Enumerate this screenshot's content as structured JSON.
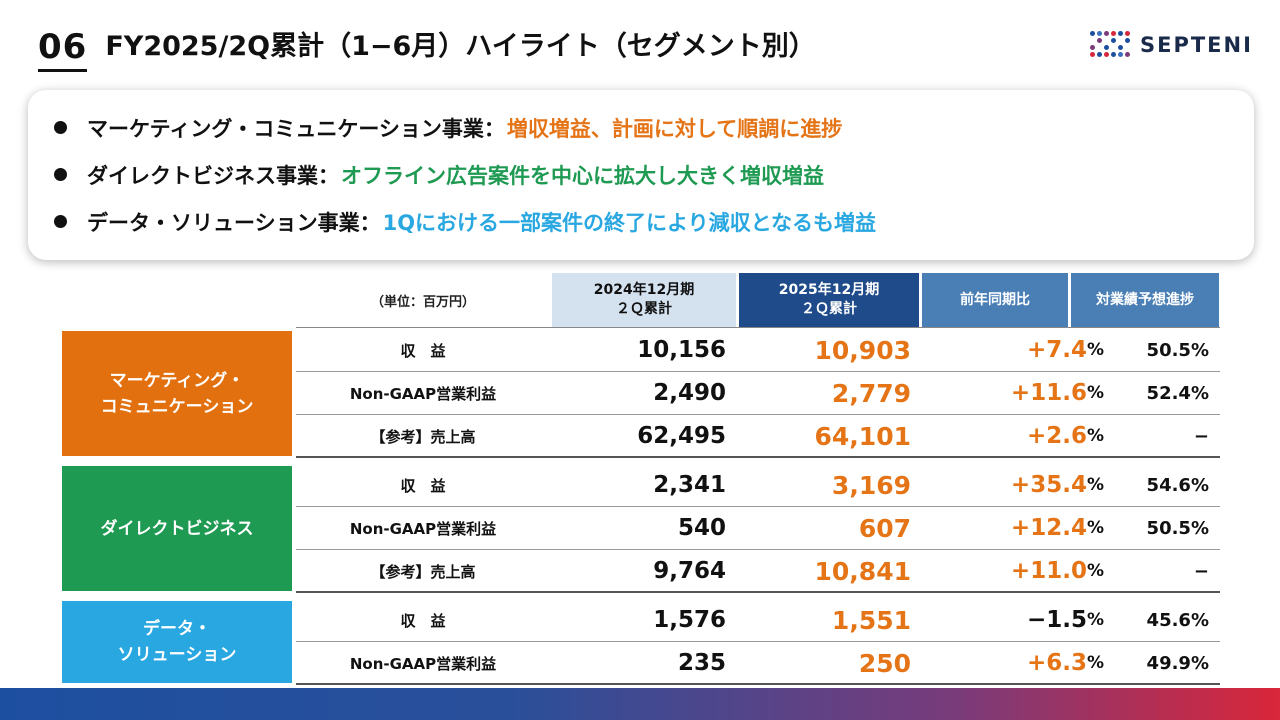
{
  "header": {
    "page_number": "06",
    "title": "FY2025/2Q累計（1−6月）ハイライト（セグメント別）"
  },
  "logo": {
    "text": "SEPTENI"
  },
  "highlights": [
    {
      "segment": "マーケティング・コミュニケーション事業：",
      "summary": "増収増益、計画に対して順調に進捗",
      "color": "#e57417"
    },
    {
      "segment": "ダイレクトビジネス事業：",
      "summary": "オフライン広告案件を中心に拡大し大きく増収増益",
      "color": "#1e9a52"
    },
    {
      "segment": "データ・ソリューション事業：",
      "summary": "1Qにおける一部案件の終了により減収となるも増益",
      "color": "#29a7e0"
    }
  ],
  "table": {
    "unit_label": "（単位：百万円）",
    "col_2024": "2024年12月期\n２Ｑ累計",
    "col_2025": "2025年12月期\n２Ｑ累計",
    "col_yoy": "前年同期比",
    "col_progress": "対業績予想進捗",
    "segments": [
      {
        "label": "マーケティング・\nコミュニケーション",
        "color": "#e2700f",
        "rows": [
          {
            "name": "収　益",
            "v2024": "10,156",
            "v2025": "10,903",
            "yoy": "+7.4",
            "yoy_unit": "%",
            "yoy_color": "#e57417",
            "progress": "50.5%"
          },
          {
            "name": "Non-GAAP営業利益",
            "v2024": "2,490",
            "v2025": "2,779",
            "yoy": "+11.6",
            "yoy_unit": "%",
            "yoy_color": "#e57417",
            "progress": "52.4%"
          },
          {
            "name": "【参考】売上高",
            "v2024": "62,495",
            "v2025": "64,101",
            "yoy": "+2.6",
            "yoy_unit": "%",
            "yoy_color": "#e57417",
            "progress": "−"
          }
        ]
      },
      {
        "label": "ダイレクトビジネス",
        "color": "#1e9a52",
        "rows": [
          {
            "name": "収　益",
            "v2024": "2,341",
            "v2025": "3,169",
            "yoy": "+35.4",
            "yoy_unit": "%",
            "yoy_color": "#e57417",
            "progress": "54.6%"
          },
          {
            "name": "Non-GAAP営業利益",
            "v2024": "540",
            "v2025": "607",
            "yoy": "+12.4",
            "yoy_unit": "%",
            "yoy_color": "#e57417",
            "progress": "50.5%"
          },
          {
            "name": "【参考】売上高",
            "v2024": "9,764",
            "v2025": "10,841",
            "yoy": "+11.0",
            "yoy_unit": "%",
            "yoy_color": "#e57417",
            "progress": "−"
          }
        ]
      },
      {
        "label": "データ・\nソリューション",
        "color": "#29a7e0",
        "rows": [
          {
            "name": "収　益",
            "v2024": "1,576",
            "v2025": "1,551",
            "yoy": "−1.5",
            "yoy_unit": "%",
            "yoy_color": "#111111",
            "progress": "45.6%"
          },
          {
            "name": "Non-GAAP営業利益",
            "v2024": "235",
            "v2025": "250",
            "yoy": "+6.3",
            "yoy_unit": "%",
            "yoy_color": "#e57417",
            "progress": "49.9%"
          }
        ]
      }
    ]
  }
}
